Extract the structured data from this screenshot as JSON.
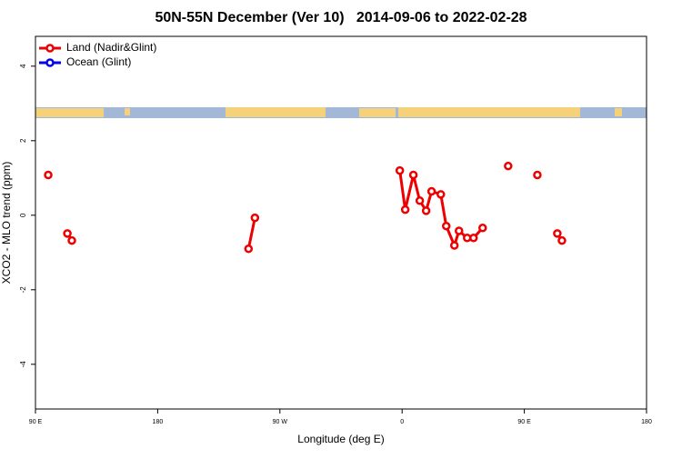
{
  "chart_data": {
    "type": "line",
    "title": "50N-55N December (Ver 10)   2014-09-06 to 2022-02-28",
    "xlabel": "Longitude (deg E)",
    "ylabel": "XCO2 - MLO trend (ppm)",
    "xlim": [
      90,
      540
    ],
    "ylim": [
      -5.2,
      4.8
    ],
    "xticks": [
      {
        "value": 90,
        "label": "90 E"
      },
      180,
      {
        "value": 270,
        "label": "90 W"
      },
      {
        "value": 360,
        "label": "0"
      },
      {
        "value": 450,
        "label": "90 E"
      },
      {
        "value": 540,
        "label": "180"
      }
    ],
    "yticks": [
      -4,
      -2,
      0,
      2,
      4
    ],
    "legend": "top-left",
    "series": [
      {
        "name": "Land (Nadir&Glint)",
        "color": "#ee0000",
        "x": [
          99.4,
          null,
          113.5,
          116.8,
          null,
          246.9,
          251.6,
          null,
          358.3,
          362.3,
          368.3,
          373,
          377.7,
          381.7,
          388.5,
          392.5,
          398.5,
          401.9,
          407.9,
          412.6,
          419.3,
          null,
          438.1,
          null,
          459.6,
          null,
          474.3,
          477.7
        ],
        "values": [
          1.08,
          null,
          -0.49,
          -0.68,
          null,
          -0.9,
          -0.07,
          null,
          1.2,
          0.15,
          1.08,
          0.39,
          0.12,
          0.64,
          0.56,
          -0.29,
          -0.81,
          -0.42,
          -0.61,
          -0.61,
          -0.34,
          null,
          1.32,
          null,
          1.08,
          null,
          -0.49,
          -0.68
        ]
      },
      {
        "name": "Ocean (Glint)",
        "color": "#0000ee",
        "x": [],
        "values": []
      }
    ]
  }
}
